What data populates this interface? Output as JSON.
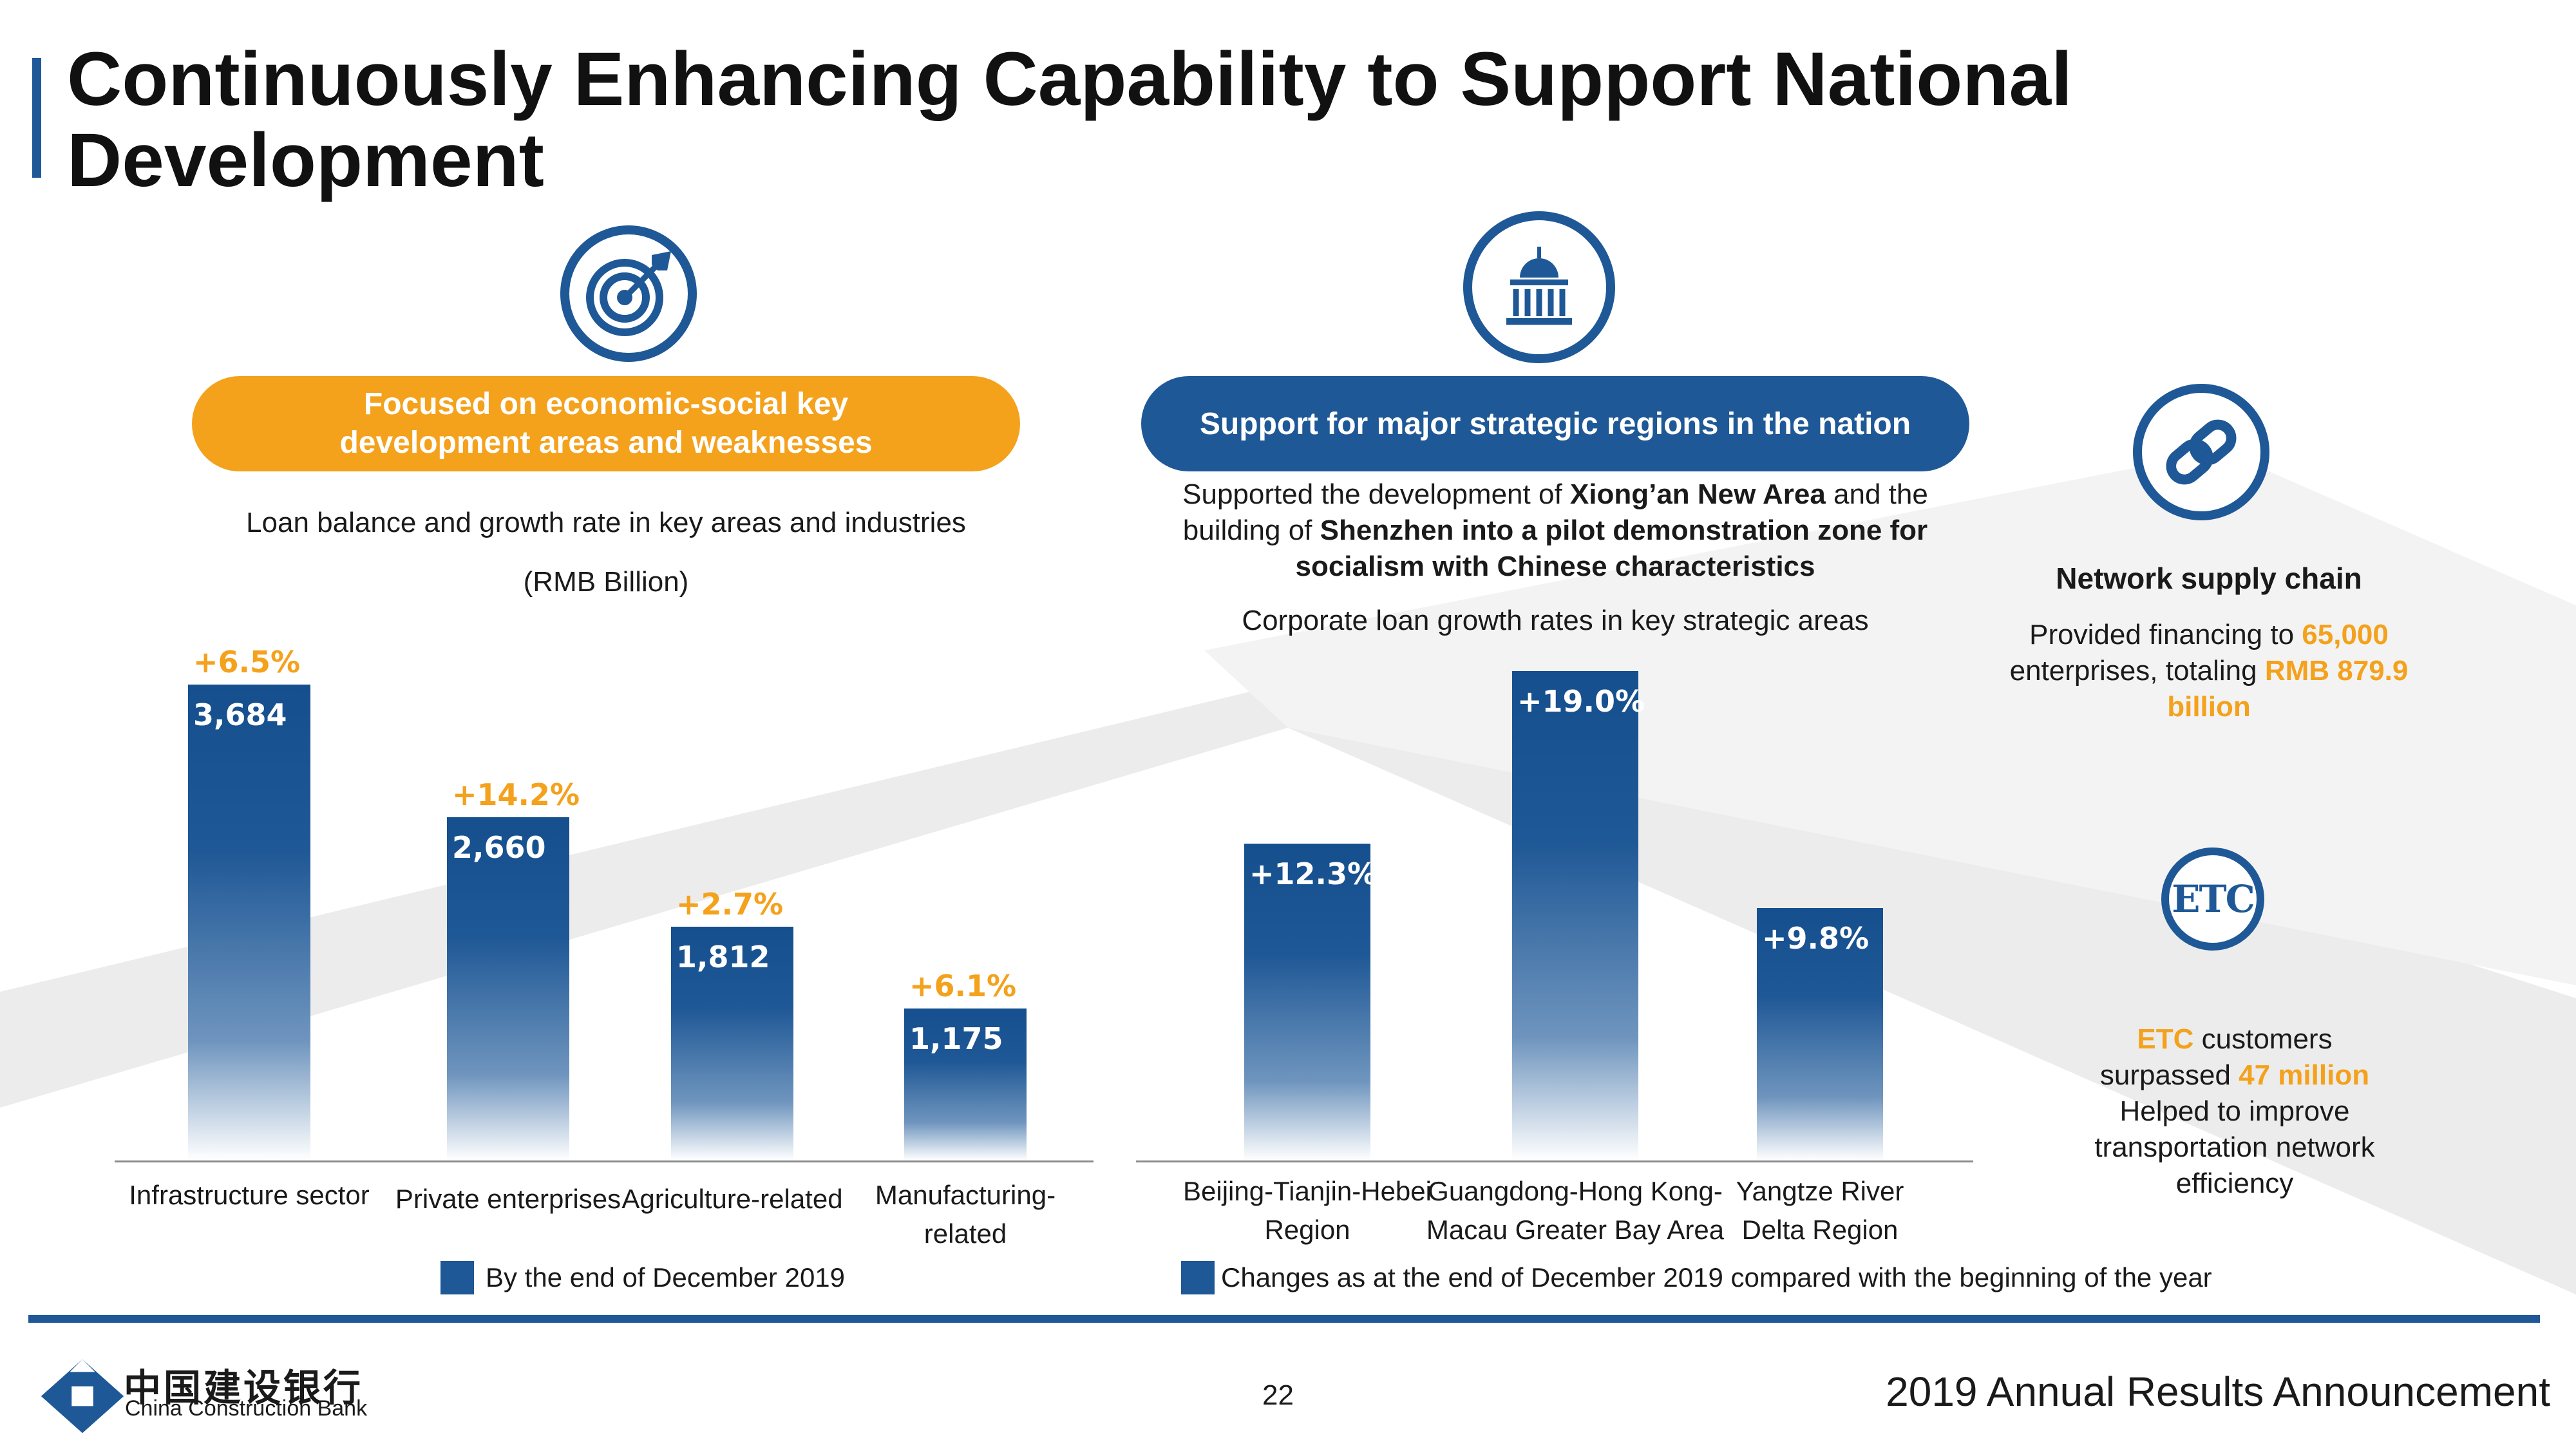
{
  "title": "Continuously Enhancing Capability to Support National Development",
  "left": {
    "icon": "target-icon",
    "pill_line1": "Focused on economic-social key",
    "pill_line2": "development areas and weaknesses",
    "subtitle": "Loan balance and growth rate in key areas and industries",
    "unit": "(RMB Billion)",
    "legend": "By the end of December 2019"
  },
  "middle": {
    "icon": "government-building-icon",
    "pill": "Support for major strategic regions in the nation",
    "desc1_pre": "Supported the development of ",
    "desc1_bold": "Xiong’an New Area",
    "desc1_post": " and the",
    "desc2_pre": "building of ",
    "desc2_bold": "Shenzhen into a pilot demonstration zone for",
    "desc3_bold": "socialism with Chinese characteristics",
    "subtitle": "Corporate loan growth rates in key strategic areas",
    "legend": "Changes as at the end of December 2019 compared with the beginning of the year"
  },
  "right": {
    "supply": {
      "icon": "chain-link-icon",
      "heading": "Network supply chain",
      "l1_pre": "Provided financing to ",
      "l1_hl": "65,000",
      "l2_pre": "enterprises, totaling ",
      "l2_hl": "RMB 879.9",
      "l3_hl": "billion"
    },
    "etc": {
      "icon": "etc-icon",
      "icon_text": "ETC",
      "l1_hl": "ETC",
      "l1_post": " customers",
      "l2_pre": "surpassed ",
      "l2_hl": "47 million",
      "l3": "Helped to improve",
      "l4": "transportation network",
      "l5": "efficiency"
    }
  },
  "chart_data": [
    {
      "type": "bar",
      "categories": [
        "Infrastructure sector",
        "Private enterprises",
        "Agriculture-related",
        "Manufacturing-related"
      ],
      "category_lines": [
        [
          "Infrastructure sector"
        ],
        [
          "Private enterprises"
        ],
        [
          "Agriculture-related"
        ],
        [
          "Manufacturing-",
          "related"
        ]
      ],
      "values": [
        3684,
        2660,
        1812,
        1175
      ],
      "value_labels": [
        "3,684",
        "2,660",
        "1,812",
        "1,175"
      ],
      "growth_labels": [
        "+6.5%",
        "+14.2%",
        "+2.7%",
        "+6.1%"
      ],
      "ylim": [
        0,
        3800
      ],
      "title": "Loan balance and growth rate in key areas and industries",
      "ylabel": "(RMB Billion)",
      "legend": "By the end of December 2019"
    },
    {
      "type": "bar",
      "categories": [
        "Beijing-Tianjin-Hebei Region",
        "Guangdong-Hong Kong-Macau Greater Bay Area",
        "Yangtze River Delta Region"
      ],
      "category_lines": [
        [
          "Beijing-Tianjin-Hebei",
          "Region"
        ],
        [
          "Guangdong-Hong Kong-",
          "Macau Greater Bay Area"
        ],
        [
          "Yangtze River",
          "Delta Region"
        ]
      ],
      "values": [
        12.3,
        19.0,
        9.8
      ],
      "value_labels": [
        "+12.3%",
        "+19.0%",
        "+9.8%"
      ],
      "ylim": [
        0,
        19.0
      ],
      "title": "Corporate loan growth rates in key strategic areas",
      "legend": "Changes as at the end of December 2019 compared with the beginning of the year"
    }
  ],
  "footer": {
    "logo_cn": "中国建设银行",
    "logo_en": "China Construction Bank",
    "page_number": "22",
    "announcement": "2019 Annual Results Announcement"
  },
  "colors": {
    "brand_blue": "#1f5896",
    "accent_orange": "#f4a11c",
    "bar_dark": "#154f8e"
  }
}
